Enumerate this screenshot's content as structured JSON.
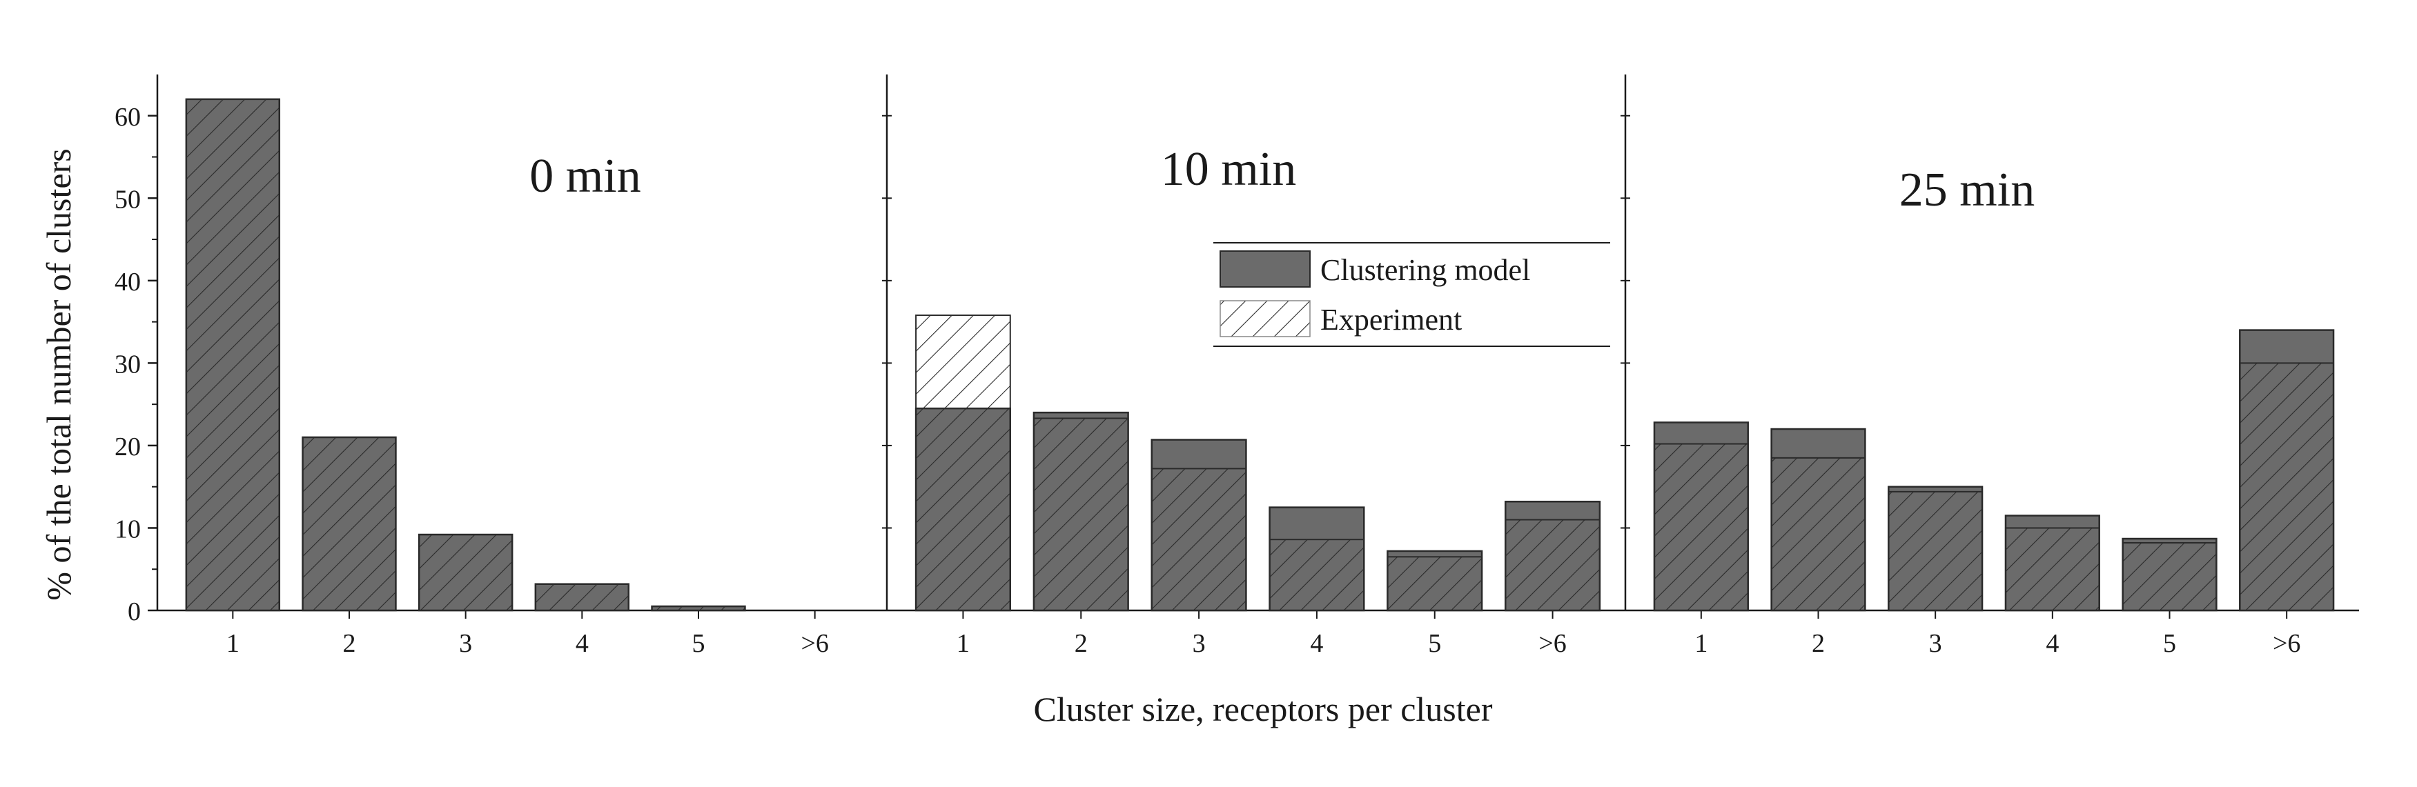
{
  "chart_data": {
    "type": "bar",
    "ylabel": "% of the total number of clusters",
    "xlabel": "Cluster size,  receptors per cluster",
    "ylim": [
      0,
      65
    ],
    "yticks": [
      0,
      10,
      20,
      30,
      40,
      50,
      60
    ],
    "categories": [
      "1",
      "2",
      "3",
      "4",
      "5",
      ">6"
    ],
    "legend": {
      "placement": "inside-top-right of middle panel",
      "entries": [
        {
          "name": "Clustering model",
          "style": "solid"
        },
        {
          "name": "Experiment",
          "style": "hatched"
        }
      ]
    },
    "panels": [
      {
        "label": "0 min",
        "series": [
          {
            "name": "Clustering model",
            "values": [
              62,
              21,
              9.2,
              3.2,
              0.5,
              0
            ]
          },
          {
            "name": "Experiment",
            "values": [
              62,
              21,
              9.2,
              3.2,
              0.5,
              0
            ]
          }
        ]
      },
      {
        "label": "10 min",
        "series": [
          {
            "name": "Clustering model",
            "values": [
              24.5,
              24,
              20.7,
              12.5,
              7.2,
              13.2
            ]
          },
          {
            "name": "Experiment",
            "values": [
              35.8,
              23.3,
              17.2,
              8.6,
              6.5,
              11
            ]
          }
        ]
      },
      {
        "label": "25 min",
        "series": [
          {
            "name": "Clustering model",
            "values": [
              22.8,
              22,
              15,
              11.5,
              8.7,
              34
            ]
          },
          {
            "name": "Experiment",
            "values": [
              20.2,
              18.5,
              14.4,
              10,
              8.2,
              30
            ]
          }
        ]
      }
    ],
    "colors": {
      "bar_fill": "#6b6b6b",
      "bar_stroke": "#2a2a2a",
      "hatch": "#2a2a2a",
      "axis": "#1a1a1a"
    }
  }
}
